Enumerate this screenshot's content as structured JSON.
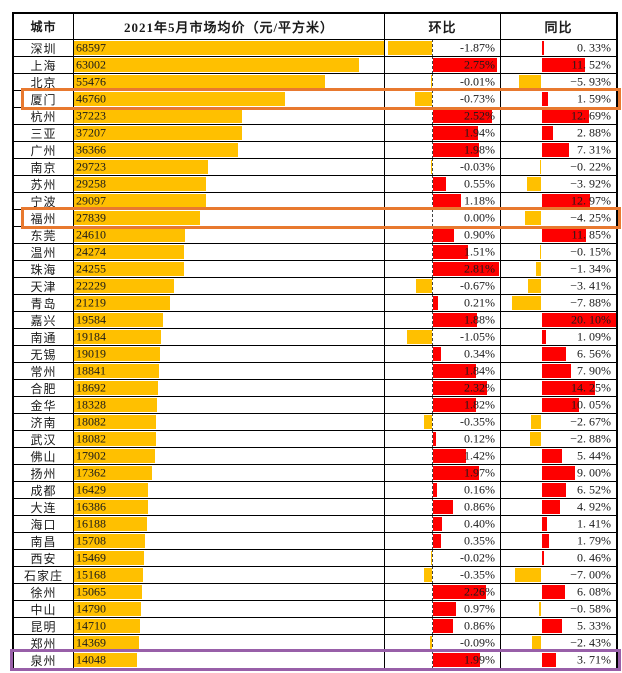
{
  "header": {
    "city": "城市",
    "price": "2021年5月市场均价（元/平方米）",
    "mom": "环比",
    "yoy": "同比"
  },
  "colors": {
    "positive_bar": "#fe0000",
    "negative_bar": "#ffc000",
    "price_bar": "#ffc000",
    "highlight_orange": "#e8792f",
    "highlight_purple": "#985fa8",
    "border": "#000000"
  },
  "rows": [
    {
      "city": "深圳",
      "price": "68597",
      "price_value": 68597,
      "mom": "-1.87%",
      "mom_value": -1.87,
      "yoy": "0. 33%",
      "yoy_value": 0.33
    },
    {
      "city": "上海",
      "price": "63002",
      "price_value": 63002,
      "mom": "2.75%",
      "mom_value": 2.75,
      "yoy": "11. 52%",
      "yoy_value": 11.52
    },
    {
      "city": "北京",
      "price": "55476",
      "price_value": 55476,
      "mom": "-0.01%",
      "mom_value": -0.01,
      "yoy": "−5. 93%",
      "yoy_value": -5.93
    },
    {
      "city": "厦门",
      "price": "46760",
      "price_value": 46760,
      "mom": "-0.73%",
      "mom_value": -0.73,
      "yoy": "1. 59%",
      "yoy_value": 1.59
    },
    {
      "city": "杭州",
      "price": "37223",
      "price_value": 37223,
      "mom": "2.52%",
      "mom_value": 2.52,
      "yoy": "12. 69%",
      "yoy_value": 12.69
    },
    {
      "city": "三亚",
      "price": "37207",
      "price_value": 37207,
      "mom": "1.94%",
      "mom_value": 1.94,
      "yoy": "2. 88%",
      "yoy_value": 2.88
    },
    {
      "city": "广州",
      "price": "36366",
      "price_value": 36366,
      "mom": "1.98%",
      "mom_value": 1.98,
      "yoy": "7. 31%",
      "yoy_value": 7.31
    },
    {
      "city": "南京",
      "price": "29723",
      "price_value": 29723,
      "mom": "-0.03%",
      "mom_value": -0.03,
      "yoy": "−0. 22%",
      "yoy_value": -0.22
    },
    {
      "city": "苏州",
      "price": "29258",
      "price_value": 29258,
      "mom": "0.55%",
      "mom_value": 0.55,
      "yoy": "−3. 92%",
      "yoy_value": -3.92
    },
    {
      "city": "宁波",
      "price": "29097",
      "price_value": 29097,
      "mom": "1.18%",
      "mom_value": 1.18,
      "yoy": "12. 97%",
      "yoy_value": 12.97
    },
    {
      "city": "福州",
      "price": "27839",
      "price_value": 27839,
      "mom": "0.00%",
      "mom_value": 0.0,
      "yoy": "−4. 25%",
      "yoy_value": -4.25
    },
    {
      "city": "东莞",
      "price": "24610",
      "price_value": 24610,
      "mom": "0.90%",
      "mom_value": 0.9,
      "yoy": "11. 85%",
      "yoy_value": 11.85
    },
    {
      "city": "温州",
      "price": "24274",
      "price_value": 24274,
      "mom": "1.51%",
      "mom_value": 1.51,
      "yoy": "−0. 15%",
      "yoy_value": -0.15
    },
    {
      "city": "珠海",
      "price": "24255",
      "price_value": 24255,
      "mom": "2.81%",
      "mom_value": 2.81,
      "yoy": "−1. 34%",
      "yoy_value": -1.34
    },
    {
      "city": "天津",
      "price": "22229",
      "price_value": 22229,
      "mom": "-0.67%",
      "mom_value": -0.67,
      "yoy": "−3. 41%",
      "yoy_value": -3.41
    },
    {
      "city": "青岛",
      "price": "21219",
      "price_value": 21219,
      "mom": "0.21%",
      "mom_value": 0.21,
      "yoy": "−7. 88%",
      "yoy_value": -7.88
    },
    {
      "city": "嘉兴",
      "price": "19584",
      "price_value": 19584,
      "mom": "1.88%",
      "mom_value": 1.88,
      "yoy": "20. 10%",
      "yoy_value": 20.1
    },
    {
      "city": "南通",
      "price": "19184",
      "price_value": 19184,
      "mom": "-1.05%",
      "mom_value": -1.05,
      "yoy": "1. 09%",
      "yoy_value": 1.09
    },
    {
      "city": "无锡",
      "price": "19019",
      "price_value": 19019,
      "mom": "0.34%",
      "mom_value": 0.34,
      "yoy": "6. 56%",
      "yoy_value": 6.56
    },
    {
      "city": "常州",
      "price": "18841",
      "price_value": 18841,
      "mom": "1.84%",
      "mom_value": 1.84,
      "yoy": "7. 90%",
      "yoy_value": 7.9
    },
    {
      "city": "合肥",
      "price": "18692",
      "price_value": 18692,
      "mom": "2.32%",
      "mom_value": 2.32,
      "yoy": "14. 25%",
      "yoy_value": 14.25
    },
    {
      "city": "金华",
      "price": "18328",
      "price_value": 18328,
      "mom": "1.82%",
      "mom_value": 1.82,
      "yoy": "10. 05%",
      "yoy_value": 10.05
    },
    {
      "city": "济南",
      "price": "18082",
      "price_value": 18082,
      "mom": "-0.35%",
      "mom_value": -0.35,
      "yoy": "−2. 67%",
      "yoy_value": -2.67
    },
    {
      "city": "武汉",
      "price": "18082",
      "price_value": 18082,
      "mom": "0.12%",
      "mom_value": 0.12,
      "yoy": "−2. 88%",
      "yoy_value": -2.88
    },
    {
      "city": "佛山",
      "price": "17902",
      "price_value": 17902,
      "mom": "1.42%",
      "mom_value": 1.42,
      "yoy": "5. 44%",
      "yoy_value": 5.44
    },
    {
      "city": "扬州",
      "price": "17362",
      "price_value": 17362,
      "mom": "1.97%",
      "mom_value": 1.97,
      "yoy": "9. 00%",
      "yoy_value": 9.0
    },
    {
      "city": "成都",
      "price": "16429",
      "price_value": 16429,
      "mom": "0.16%",
      "mom_value": 0.16,
      "yoy": "6. 52%",
      "yoy_value": 6.52
    },
    {
      "city": "大连",
      "price": "16386",
      "price_value": 16386,
      "mom": "0.86%",
      "mom_value": 0.86,
      "yoy": "4. 92%",
      "yoy_value": 4.92
    },
    {
      "city": "海口",
      "price": "16188",
      "price_value": 16188,
      "mom": "0.40%",
      "mom_value": 0.4,
      "yoy": "1. 41%",
      "yoy_value": 1.41
    },
    {
      "city": "南昌",
      "price": "15708",
      "price_value": 15708,
      "mom": "0.35%",
      "mom_value": 0.35,
      "yoy": "1. 79%",
      "yoy_value": 1.79
    },
    {
      "city": "西安",
      "price": "15469",
      "price_value": 15469,
      "mom": "-0.02%",
      "mom_value": -0.02,
      "yoy": "0. 46%",
      "yoy_value": 0.46
    },
    {
      "city": "石家庄",
      "price": "15168",
      "price_value": 15168,
      "mom": "-0.35%",
      "mom_value": -0.35,
      "yoy": "−7. 00%",
      "yoy_value": -7.0
    },
    {
      "city": "徐州",
      "price": "15065",
      "price_value": 15065,
      "mom": "2.26%",
      "mom_value": 2.26,
      "yoy": "6. 08%",
      "yoy_value": 6.08
    },
    {
      "city": "中山",
      "price": "14790",
      "price_value": 14790,
      "mom": "0.97%",
      "mom_value": 0.97,
      "yoy": "−0. 58%",
      "yoy_value": -0.58
    },
    {
      "city": "昆明",
      "price": "14710",
      "price_value": 14710,
      "mom": "0.86%",
      "mom_value": 0.86,
      "yoy": "5. 33%",
      "yoy_value": 5.33
    },
    {
      "city": "郑州",
      "price": "14369",
      "price_value": 14369,
      "mom": "-0.09%",
      "mom_value": -0.09,
      "yoy": "−2. 43%",
      "yoy_value": -2.43
    },
    {
      "city": "泉州",
      "price": "14048",
      "price_value": 14048,
      "mom": "1.99%",
      "mom_value": 1.99,
      "yoy": "3. 71%",
      "yoy_value": 3.71
    }
  ],
  "highlights": [
    {
      "target_city": "厦门",
      "color": "#e8792f",
      "full_width": false
    },
    {
      "target_city": "福州",
      "color": "#e8792f",
      "full_width": false
    },
    {
      "target_city": "泉州",
      "color": "#985fa8",
      "full_width": true
    }
  ],
  "chart_data": {
    "type": "table",
    "title": "2021年5月市场均价（元/平方米）",
    "columns": [
      "城市",
      "2021年5月市场均价（元/平方米）",
      "环比",
      "同比"
    ],
    "categories": [
      "深圳",
      "上海",
      "北京",
      "厦门",
      "杭州",
      "三亚",
      "广州",
      "南京",
      "苏州",
      "宁波",
      "福州",
      "东莞",
      "温州",
      "珠海",
      "天津",
      "青岛",
      "嘉兴",
      "南通",
      "无锡",
      "常州",
      "合肥",
      "金华",
      "济南",
      "武汉",
      "佛山",
      "扬州",
      "成都",
      "大连",
      "海口",
      "南昌",
      "西安",
      "石家庄",
      "徐州",
      "中山",
      "昆明",
      "郑州",
      "泉州"
    ],
    "series": [
      {
        "name": "2021年5月市场均价(元/平方米)",
        "values": [
          68597,
          63002,
          55476,
          46760,
          37223,
          37207,
          36366,
          29723,
          29258,
          29097,
          27839,
          24610,
          24274,
          24255,
          22229,
          21219,
          19584,
          19184,
          19019,
          18841,
          18692,
          18328,
          18082,
          18082,
          17902,
          17362,
          16429,
          16386,
          16188,
          15708,
          15469,
          15168,
          15065,
          14790,
          14710,
          14369,
          14048
        ]
      },
      {
        "name": "环比(%)",
        "values": [
          -1.87,
          2.75,
          -0.01,
          -0.73,
          2.52,
          1.94,
          1.98,
          -0.03,
          0.55,
          1.18,
          0.0,
          0.9,
          1.51,
          2.81,
          -0.67,
          0.21,
          1.88,
          -1.05,
          0.34,
          1.84,
          2.32,
          1.82,
          -0.35,
          0.12,
          1.42,
          1.97,
          0.16,
          0.86,
          0.4,
          0.35,
          -0.02,
          -0.35,
          2.26,
          0.97,
          0.86,
          -0.09,
          1.99
        ]
      },
      {
        "name": "同比(%)",
        "values": [
          0.33,
          11.52,
          -5.93,
          1.59,
          12.69,
          2.88,
          7.31,
          -0.22,
          -3.92,
          12.97,
          -4.25,
          11.85,
          -0.15,
          -1.34,
          -3.41,
          -7.88,
          20.1,
          1.09,
          6.56,
          7.9,
          14.25,
          10.05,
          -2.67,
          -2.88,
          5.44,
          9.0,
          6.52,
          4.92,
          1.41,
          1.79,
          0.46,
          -7.0,
          6.08,
          -0.58,
          5.33,
          -2.43,
          3.71
        ]
      }
    ],
    "layout": {
      "bar_color_positive": "red",
      "bar_color_negative": "gold",
      "price_bar_color": "gold",
      "mom_axis": "dashed zero line inside 环比 column",
      "highlighted_rows": [
        "厦门 (orange box)",
        "福州 (orange box)",
        "泉州 (purple box)"
      ]
    }
  }
}
